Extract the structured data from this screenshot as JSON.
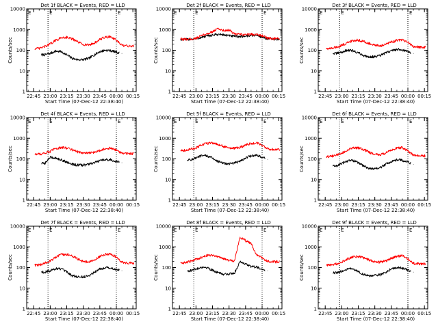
{
  "figure": {
    "xlabel": "Start Time (07-Dec-12 22:38:40)",
    "ylabel": "Counts/sec",
    "x_ticks": [
      "22:45",
      "23:00",
      "23:15",
      "23:30",
      "23:45",
      "00:00",
      "00:15"
    ],
    "y_ticks": [
      "1",
      "10",
      "100",
      "1000",
      "10000"
    ],
    "marker_label": "E",
    "colors": {
      "events": "#000000",
      "lld": "#ff0000",
      "axes": "#000000"
    }
  },
  "chart_data": [
    {
      "type": "line",
      "title": "Det 1f BLACK = Events, RED = LLD",
      "x": [
        "22:50",
        "22:55",
        "23:00",
        "23:05",
        "23:10",
        "23:15",
        "23:20",
        "23:25",
        "23:30",
        "23:35",
        "23:40",
        "23:45",
        "23:50",
        "23:55",
        "00:00",
        "00:05",
        "00:10"
      ],
      "yscale": "log",
      "ylim": [
        1,
        10000
      ],
      "xlim": [
        "22:38:40",
        "00:18"
      ],
      "markers": [
        "22:58",
        "00:00"
      ],
      "grid": false,
      "series": [
        {
          "role": "events",
          "x_start": "22:52",
          "x_end": "00:03",
          "values": [
            null,
            60,
            70,
            90,
            85,
            60,
            40,
            35,
            35,
            40,
            60,
            85,
            100,
            95,
            80,
            70,
            null
          ]
        },
        {
          "role": "lld",
          "values": [
            120,
            150,
            200,
            300,
            400,
            430,
            350,
            250,
            190,
            180,
            220,
            330,
            430,
            450,
            300,
            170,
            160
          ]
        }
      ]
    },
    {
      "type": "line",
      "title": "Det 2f BLACK = Events, RED = LLD",
      "x": [
        "22:50",
        "22:55",
        "23:00",
        "23:05",
        "23:10",
        "23:15",
        "23:20",
        "23:25",
        "23:30",
        "23:35",
        "23:40",
        "23:45",
        "23:50",
        "23:55",
        "00:00",
        "00:05",
        "00:10"
      ],
      "yscale": "log",
      "ylim": [
        1,
        10000
      ],
      "xlim": [
        "22:38:40",
        "00:18"
      ],
      "markers": [
        "22:58",
        "00:00"
      ],
      "grid": false,
      "series": [
        {
          "role": "events",
          "values": [
            330,
            340,
            360,
            420,
            480,
            540,
            580,
            560,
            500,
            470,
            460,
            480,
            520,
            540,
            430,
            360,
            340
          ]
        },
        {
          "role": "lld",
          "values": [
            340,
            350,
            380,
            500,
            620,
            800,
            1100,
            900,
            950,
            600,
            580,
            570,
            590,
            600,
            500,
            380,
            360
          ]
        }
      ]
    },
    {
      "type": "line",
      "title": "Det 3f BLACK = Events, RED = LLD",
      "x": [
        "22:50",
        "22:55",
        "23:00",
        "23:05",
        "23:10",
        "23:15",
        "23:20",
        "23:25",
        "23:30",
        "23:35",
        "23:40",
        "23:45",
        "23:50",
        "23:55",
        "00:00",
        "00:05",
        "00:10"
      ],
      "yscale": "log",
      "ylim": [
        1,
        10000
      ],
      "xlim": [
        "22:38:40",
        "00:18"
      ],
      "markers": [
        "22:58",
        "00:00"
      ],
      "grid": false,
      "series": [
        {
          "role": "events",
          "x_start": "22:52",
          "x_end": "00:03",
          "values": [
            null,
            70,
            80,
            100,
            95,
            75,
            55,
            48,
            48,
            55,
            75,
            95,
            110,
            105,
            85,
            70,
            null
          ]
        },
        {
          "role": "lld",
          "values": [
            120,
            140,
            170,
            230,
            290,
            310,
            270,
            210,
            170,
            165,
            190,
            250,
            300,
            310,
            240,
            150,
            140
          ]
        }
      ]
    },
    {
      "type": "line",
      "title": "Det 4f BLACK = Events, RED = LLD",
      "x": [
        "22:50",
        "22:55",
        "23:00",
        "23:05",
        "23:10",
        "23:15",
        "23:20",
        "23:25",
        "23:30",
        "23:35",
        "23:40",
        "23:45",
        "23:50",
        "23:55",
        "00:00",
        "00:05",
        "00:10"
      ],
      "yscale": "log",
      "ylim": [
        1,
        10000
      ],
      "xlim": [
        "22:38:40",
        "00:18"
      ],
      "markers": [
        "22:58",
        "00:00"
      ],
      "grid": false,
      "series": [
        {
          "role": "events",
          "x_start": "22:52",
          "x_end": "00:03",
          "values": [
            null,
            60,
            120,
            110,
            90,
            70,
            55,
            50,
            50,
            55,
            65,
            80,
            90,
            90,
            75,
            65,
            null
          ]
        },
        {
          "role": "lld",
          "values": [
            170,
            190,
            230,
            320,
            350,
            340,
            280,
            220,
            190,
            190,
            210,
            260,
            310,
            330,
            260,
            190,
            180
          ]
        }
      ]
    },
    {
      "type": "line",
      "title": "Det 5f BLACK = Events, RED = LLD",
      "x": [
        "22:50",
        "22:55",
        "23:00",
        "23:05",
        "23:10",
        "23:15",
        "23:20",
        "23:25",
        "23:30",
        "23:35",
        "23:40",
        "23:45",
        "23:50",
        "23:55",
        "00:00",
        "00:05",
        "00:10"
      ],
      "yscale": "log",
      "ylim": [
        1,
        10000
      ],
      "xlim": [
        "22:38:40",
        "00:18"
      ],
      "markers": [
        "22:58",
        "00:00"
      ],
      "grid": false,
      "series": [
        {
          "role": "events",
          "x_start": "22:52",
          "x_end": "00:03",
          "values": [
            null,
            90,
            110,
            140,
            140,
            110,
            75,
            60,
            58,
            62,
            80,
            110,
            140,
            150,
            120,
            95,
            null
          ]
        },
        {
          "role": "lld",
          "values": [
            260,
            290,
            340,
            460,
            570,
            600,
            500,
            400,
            330,
            320,
            360,
            460,
            560,
            580,
            460,
            310,
            280
          ]
        }
      ]
    },
    {
      "type": "line",
      "title": "Det 6f BLACK = Events, RED = LLD",
      "x": [
        "22:50",
        "22:55",
        "23:00",
        "23:05",
        "23:10",
        "23:15",
        "23:20",
        "23:25",
        "23:30",
        "23:35",
        "23:40",
        "23:45",
        "23:50",
        "23:55",
        "00:00",
        "00:05",
        "00:10"
      ],
      "yscale": "log",
      "ylim": [
        1,
        10000
      ],
      "xlim": [
        "22:38:40",
        "00:18"
      ],
      "markers": [
        "22:58",
        "00:00"
      ],
      "grid": false,
      "series": [
        {
          "role": "events",
          "x_start": "22:52",
          "x_end": "00:03",
          "values": [
            null,
            45,
            60,
            80,
            85,
            65,
            45,
            35,
            32,
            38,
            55,
            75,
            90,
            85,
            70,
            55,
            null
          ]
        },
        {
          "role": "lld",
          "values": [
            130,
            150,
            190,
            260,
            330,
            340,
            280,
            210,
            165,
            160,
            190,
            260,
            330,
            350,
            250,
            150,
            140
          ]
        }
      ]
    },
    {
      "type": "line",
      "title": "Det 7f BLACK = Events, RED = LLD",
      "x": [
        "22:50",
        "22:55",
        "23:00",
        "23:05",
        "23:10",
        "23:15",
        "23:20",
        "23:25",
        "23:30",
        "23:35",
        "23:40",
        "23:45",
        "23:50",
        "23:55",
        "00:00",
        "00:05",
        "00:10"
      ],
      "yscale": "log",
      "ylim": [
        1,
        10000
      ],
      "xlim": [
        "22:38:40",
        "00:18"
      ],
      "markers": [
        "22:58",
        "00:00"
      ],
      "grid": false,
      "series": [
        {
          "role": "events",
          "x_start": "22:52",
          "x_end": "00:03",
          "values": [
            null,
            60,
            70,
            90,
            85,
            60,
            40,
            35,
            35,
            40,
            60,
            85,
            100,
            95,
            80,
            70,
            null
          ]
        },
        {
          "role": "lld",
          "values": [
            130,
            160,
            210,
            310,
            420,
            440,
            360,
            260,
            195,
            185,
            225,
            340,
            430,
            460,
            310,
            180,
            165
          ]
        }
      ]
    },
    {
      "type": "line",
      "title": "Det 8f BLACK = Events, RED = LLD",
      "x": [
        "22:50",
        "22:55",
        "23:00",
        "23:05",
        "23:10",
        "23:15",
        "23:20",
        "23:25",
        "23:30",
        "23:35",
        "23:40",
        "23:45",
        "23:50",
        "23:55",
        "00:00",
        "00:05",
        "00:10"
      ],
      "yscale": "log",
      "ylim": [
        1,
        10000
      ],
      "xlim": [
        "22:38:40",
        "00:18"
      ],
      "markers": [
        "22:58",
        "00:00"
      ],
      "grid": false,
      "series": [
        {
          "role": "events",
          "x_start": "22:52",
          "x_end": "00:03",
          "values": [
            null,
            70,
            85,
            105,
            100,
            75,
            55,
            48,
            48,
            55,
            200,
            150,
            110,
            105,
            85,
            70,
            null
          ]
        },
        {
          "role": "lld",
          "values": [
            170,
            200,
            240,
            320,
            390,
            400,
            340,
            270,
            220,
            215,
            3000,
            2000,
            1500,
            400,
            300,
            200,
            190
          ]
        }
      ]
    },
    {
      "type": "line",
      "title": "Det 9f BLACK = Events, RED = LLD",
      "x": [
        "22:50",
        "22:55",
        "23:00",
        "23:05",
        "23:10",
        "23:15",
        "23:20",
        "23:25",
        "23:30",
        "23:35",
        "23:40",
        "23:45",
        "23:50",
        "23:55",
        "00:00",
        "00:05",
        "00:10"
      ],
      "yscale": "log",
      "ylim": [
        1,
        10000
      ],
      "xlim": [
        "22:38:40",
        "00:18"
      ],
      "markers": [
        "22:58",
        "00:00"
      ],
      "grid": false,
      "series": [
        {
          "role": "events",
          "x_start": "22:52",
          "x_end": "00:03",
          "values": [
            null,
            55,
            65,
            85,
            85,
            65,
            45,
            40,
            40,
            45,
            60,
            85,
            100,
            95,
            75,
            60,
            null
          ]
        },
        {
          "role": "lld",
          "values": [
            130,
            150,
            190,
            260,
            320,
            340,
            290,
            230,
            185,
            180,
            210,
            280,
            350,
            370,
            260,
            160,
            150
          ]
        }
      ]
    }
  ]
}
